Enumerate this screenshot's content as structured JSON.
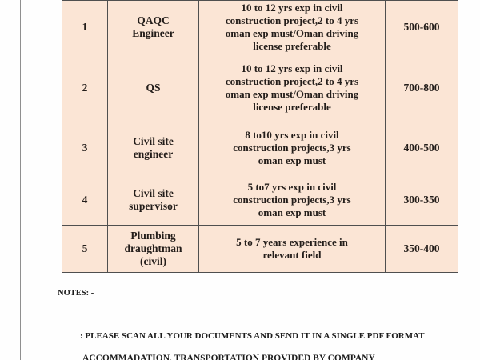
{
  "page": {
    "background_color": "#fefefe",
    "margin_line_color": "#8f8f8f"
  },
  "table": {
    "cell_background_color": "#fbe5d5",
    "border_color": "#4f4f4f",
    "text_color": "#231d1a",
    "rows": [
      {
        "sno": "1",
        "position": [
          "QAQC",
          "Engineer"
        ],
        "experience": [
          "10 to 12 yrs exp in civil",
          "construction project,2 to 4 yrs",
          "oman exp must/Oman driving",
          "license preferable"
        ],
        "salary": "500-600"
      },
      {
        "sno": "2",
        "position": [
          "QS"
        ],
        "experience": [
          "10 to 12 yrs exp in civil",
          "construction project,2 to 4 yrs",
          "oman exp must/Oman driving",
          "license preferable"
        ],
        "salary": "700-800"
      },
      {
        "sno": "3",
        "position": [
          "Civil site",
          "engineer"
        ],
        "experience": [
          "8 to10 yrs exp in civil",
          "construction projects,3 yrs",
          "oman exp must"
        ],
        "salary": "400-500"
      },
      {
        "sno": "4",
        "position": [
          "Civil site",
          "supervisor"
        ],
        "experience": [
          "5 to7 yrs exp in civil",
          "construction projects,3 yrs",
          "oman exp must"
        ],
        "salary": "300-350"
      },
      {
        "sno": "5",
        "position": [
          "Plumbing",
          "draughtman",
          "(civil)"
        ],
        "experience": [
          "5 to 7 years experience in",
          "relevant field"
        ],
        "salary": "350-400"
      }
    ]
  },
  "notes": {
    "label": "NOTES: -",
    "line1": ": PLEASE SCAN ALL YOUR DOCUMENTS AND SEND IT IN A SINGLE PDF FORMAT",
    "line2": "ACCOMMADATION, TRANSPORTATION PROVIDED BY COMPANY"
  }
}
